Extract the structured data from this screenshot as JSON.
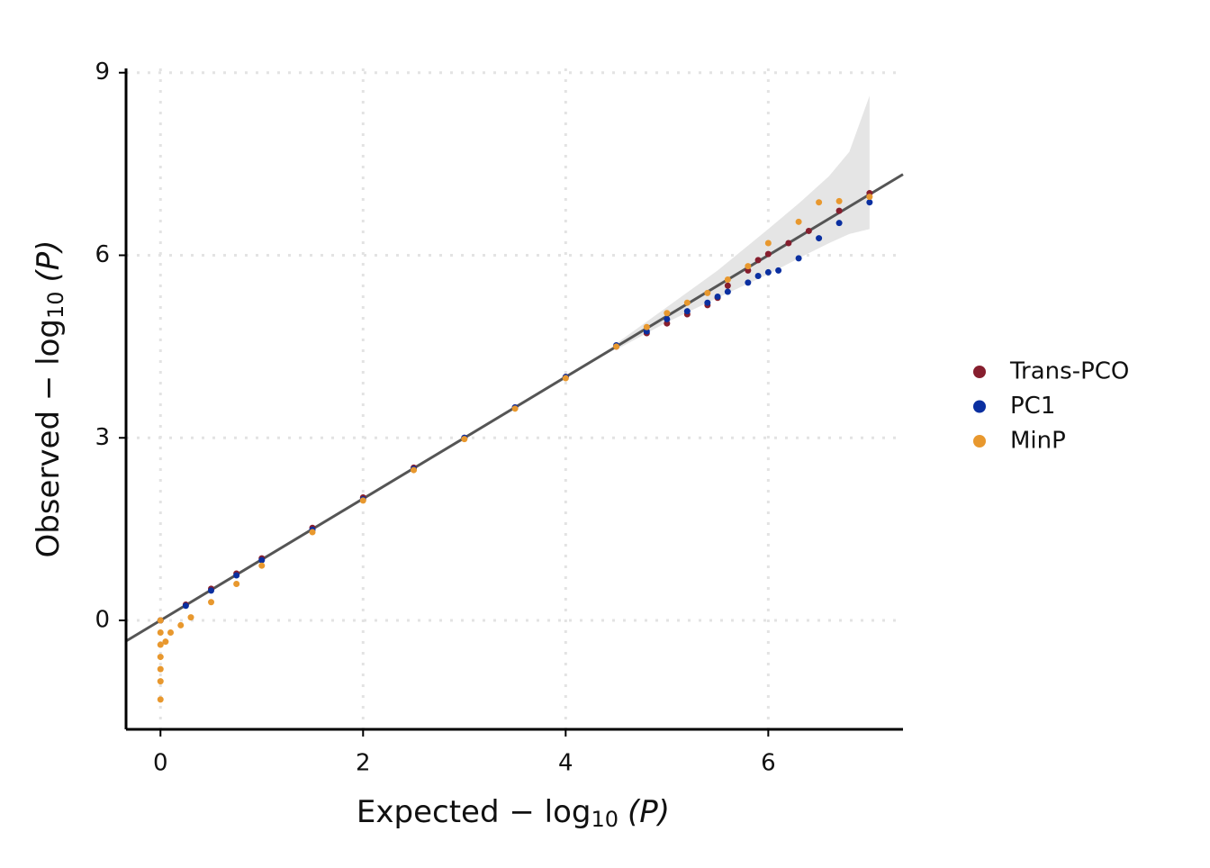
{
  "chart_data": {
    "type": "scatter",
    "x_label": [
      "Expected − log",
      "10",
      "(P)"
    ],
    "y_label": [
      "Observed − log",
      "10",
      "(P)"
    ],
    "xlim": [
      -0.34,
      7.33
    ],
    "ylim": [
      -1.79,
      9.07
    ],
    "xticks": [
      0,
      2,
      4,
      6
    ],
    "yticks": [
      0,
      3,
      6,
      9
    ],
    "grid": true,
    "legend": "right",
    "ref_line": {
      "slope": 1,
      "intercept": 0,
      "color": "#555555"
    },
    "band": {
      "color": "#e5e5e5",
      "x": [
        4.5,
        5,
        5.5,
        6,
        6.3,
        6.6,
        6.8,
        7
      ],
      "lower": [
        4.45,
        4.9,
        5.3,
        5.69,
        5.95,
        6.2,
        6.35,
        6.43
      ],
      "upper": [
        4.55,
        5.15,
        5.75,
        6.43,
        6.85,
        7.3,
        7.7,
        8.62
      ]
    },
    "series": [
      {
        "name": "Trans-PCO",
        "color": "#861e2e",
        "x": [
          0,
          0.25,
          0.5,
          0.75,
          1,
          1.5,
          2,
          2.5,
          3,
          3.5,
          4,
          4.5,
          4.8,
          5,
          5.2,
          5.4,
          5.5,
          5.6,
          5.8,
          5.9,
          6,
          6.2,
          6.4,
          6.7,
          7
        ],
        "values": [
          0,
          0.26,
          0.52,
          0.77,
          1.02,
          1.52,
          2.02,
          2.51,
          3.0,
          3.5,
          4.0,
          4.5,
          4.72,
          4.88,
          5.03,
          5.18,
          5.3,
          5.5,
          5.75,
          5.92,
          6.02,
          6.2,
          6.4,
          6.73,
          7.02
        ]
      },
      {
        "name": "PC1",
        "color": "#0a2fa0",
        "x": [
          0,
          0.25,
          0.5,
          0.75,
          1,
          1.5,
          2,
          2.5,
          3,
          3.5,
          4,
          4.5,
          4.8,
          5,
          5.2,
          5.4,
          5.5,
          5.6,
          5.8,
          5.9,
          6,
          6.1,
          6.3,
          6.5,
          6.7,
          7
        ],
        "values": [
          0,
          0.24,
          0.49,
          0.74,
          0.99,
          1.49,
          1.99,
          2.49,
          3.0,
          3.5,
          4.0,
          4.52,
          4.75,
          4.95,
          5.08,
          5.22,
          5.32,
          5.4,
          5.55,
          5.66,
          5.72,
          5.75,
          5.95,
          6.28,
          6.53,
          6.87
        ]
      },
      {
        "name": "MinP",
        "color": "#e8982e",
        "x": [
          0,
          0,
          0,
          0,
          0,
          0,
          0,
          0.05,
          0.1,
          0.2,
          0.3,
          0.5,
          0.75,
          1,
          1.5,
          2,
          2.5,
          3,
          3.5,
          4,
          4.5,
          4.8,
          5,
          5.2,
          5.4,
          5.6,
          5.8,
          6,
          6.3,
          6.5,
          6.7,
          7
        ],
        "values": [
          -1.3,
          -1.0,
          -0.8,
          -0.6,
          -0.4,
          -0.2,
          0,
          -0.35,
          -0.2,
          -0.08,
          0.05,
          0.3,
          0.6,
          0.9,
          1.45,
          1.97,
          2.47,
          2.98,
          3.48,
          3.98,
          4.5,
          4.82,
          5.05,
          5.22,
          5.38,
          5.6,
          5.82,
          6.2,
          6.55,
          6.87,
          6.89,
          6.96
        ]
      }
    ]
  }
}
